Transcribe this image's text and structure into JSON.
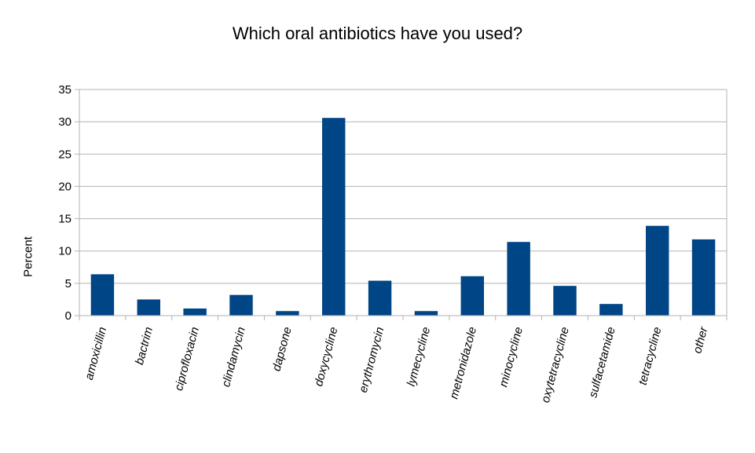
{
  "chart_data": {
    "type": "bar",
    "title": "Which oral antibiotics have you used?",
    "xlabel": "",
    "ylabel": "Percent",
    "ylim": [
      0,
      35
    ],
    "yticks": [
      0,
      5,
      10,
      15,
      20,
      25,
      30,
      35
    ],
    "grid": true,
    "bar_color": "#004586",
    "categories": [
      "amoxicillin",
      "bactrim",
      "ciprofloxacin",
      "clindamycin",
      "dapsone",
      "doxycycline",
      "erythromycin",
      "lymecycline",
      "metronidazole",
      "minocycline",
      "oxytetracycline",
      "sulfacetamide",
      "tetracycline",
      "other"
    ],
    "values": [
      6.4,
      2.5,
      1.1,
      3.2,
      0.7,
      30.6,
      5.4,
      0.7,
      6.1,
      11.4,
      4.6,
      1.8,
      13.9,
      11.8
    ]
  }
}
